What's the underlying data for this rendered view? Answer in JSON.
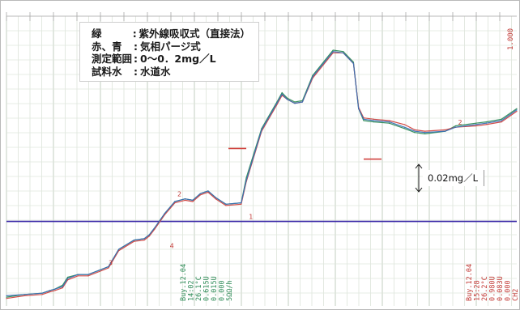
{
  "legend": {
    "rows": [
      {
        "key": "緑",
        "value": "紫外線吸収式（直接法）"
      },
      {
        "key": "赤、青",
        "value": "気相パージ式"
      },
      {
        "key": "測定範囲",
        "value": "0～0．2mg／L"
      },
      {
        "key": "試料水",
        "value": "水道水"
      }
    ]
  },
  "scale_note": "0.02mg／L",
  "step_markers": [
    "1",
    "2",
    "3",
    "4",
    "2"
  ],
  "print_left": [
    "Buy.12.04",
    "14:02",
    "26.1°C",
    "0.615U",
    "0.015U",
    "0.000",
    "5ΩΩ/h"
  ],
  "print_right": [
    "Buy.12.04",
    "15:28",
    "26.2°C",
    "0.980U",
    "0.083U",
    "0.000",
    "CH2"
  ],
  "top_right_label": "1.000",
  "chart_data": {
    "type": "line",
    "x": [
      0,
      0.035,
      0.07,
      0.085,
      0.095,
      0.11,
      0.12,
      0.14,
      0.16,
      0.2,
      0.22,
      0.25,
      0.27,
      0.28,
      0.29,
      0.31,
      0.33,
      0.35,
      0.365,
      0.38,
      0.395,
      0.41,
      0.43,
      0.46,
      0.47,
      0.5,
      0.53,
      0.54,
      0.55,
      0.565,
      0.58,
      0.6,
      0.64,
      0.66,
      0.68,
      0.69,
      0.7,
      0.72,
      0.75,
      0.78,
      0.8,
      0.82,
      0.86,
      0.88,
      0.92,
      0.94,
      0.97,
      1.0
    ],
    "series": [
      {
        "name": "緑",
        "color": "#2e8b57",
        "values": [
          0.003,
          0.005,
          0.006,
          0.008,
          0.009,
          0.012,
          0.018,
          0.02,
          0.02,
          0.026,
          0.039,
          0.046,
          0.047,
          0.05,
          0.055,
          0.066,
          0.075,
          0.077,
          0.076,
          0.081,
          0.083,
          0.078,
          0.073,
          0.074,
          0.093,
          0.13,
          0.15,
          0.157,
          0.153,
          0.15,
          0.151,
          0.17,
          0.189,
          0.188,
          0.18,
          0.145,
          0.136,
          0.135,
          0.134,
          0.13,
          0.127,
          0.126,
          0.128,
          0.132,
          0.134,
          0.135,
          0.137,
          0.145
        ]
      },
      {
        "name": "赤",
        "color": "#d0433f",
        "values": [
          0.002,
          0.004,
          0.005,
          0.007,
          0.008,
          0.01,
          0.016,
          0.019,
          0.019,
          0.025,
          0.038,
          0.045,
          0.046,
          0.049,
          0.054,
          0.065,
          0.074,
          0.076,
          0.075,
          0.08,
          0.082,
          0.077,
          0.072,
          0.073,
          0.09,
          0.128,
          0.148,
          0.155,
          0.152,
          0.149,
          0.15,
          0.168,
          0.187,
          0.187,
          0.179,
          0.146,
          0.138,
          0.137,
          0.136,
          0.133,
          0.129,
          0.128,
          0.129,
          0.131,
          0.132,
          0.133,
          0.135,
          0.143
        ]
      },
      {
        "name": "青",
        "color": "#3a6fb5",
        "values": [
          0.004,
          0.005,
          0.006,
          0.008,
          0.009,
          0.011,
          0.017,
          0.02,
          0.02,
          0.026,
          0.039,
          0.046,
          0.047,
          0.05,
          0.055,
          0.066,
          0.075,
          0.077,
          0.076,
          0.081,
          0.083,
          0.078,
          0.073,
          0.074,
          0.091,
          0.129,
          0.149,
          0.156,
          0.152,
          0.149,
          0.15,
          0.169,
          0.188,
          0.187,
          0.179,
          0.145,
          0.137,
          0.136,
          0.135,
          0.131,
          0.128,
          0.127,
          0.128,
          0.131,
          0.133,
          0.134,
          0.136,
          0.144
        ]
      }
    ],
    "baseline": {
      "value": 0.06,
      "color": "#3b2aa8"
    },
    "ylim": [
      0,
      0.2
    ],
    "grid": true
  }
}
